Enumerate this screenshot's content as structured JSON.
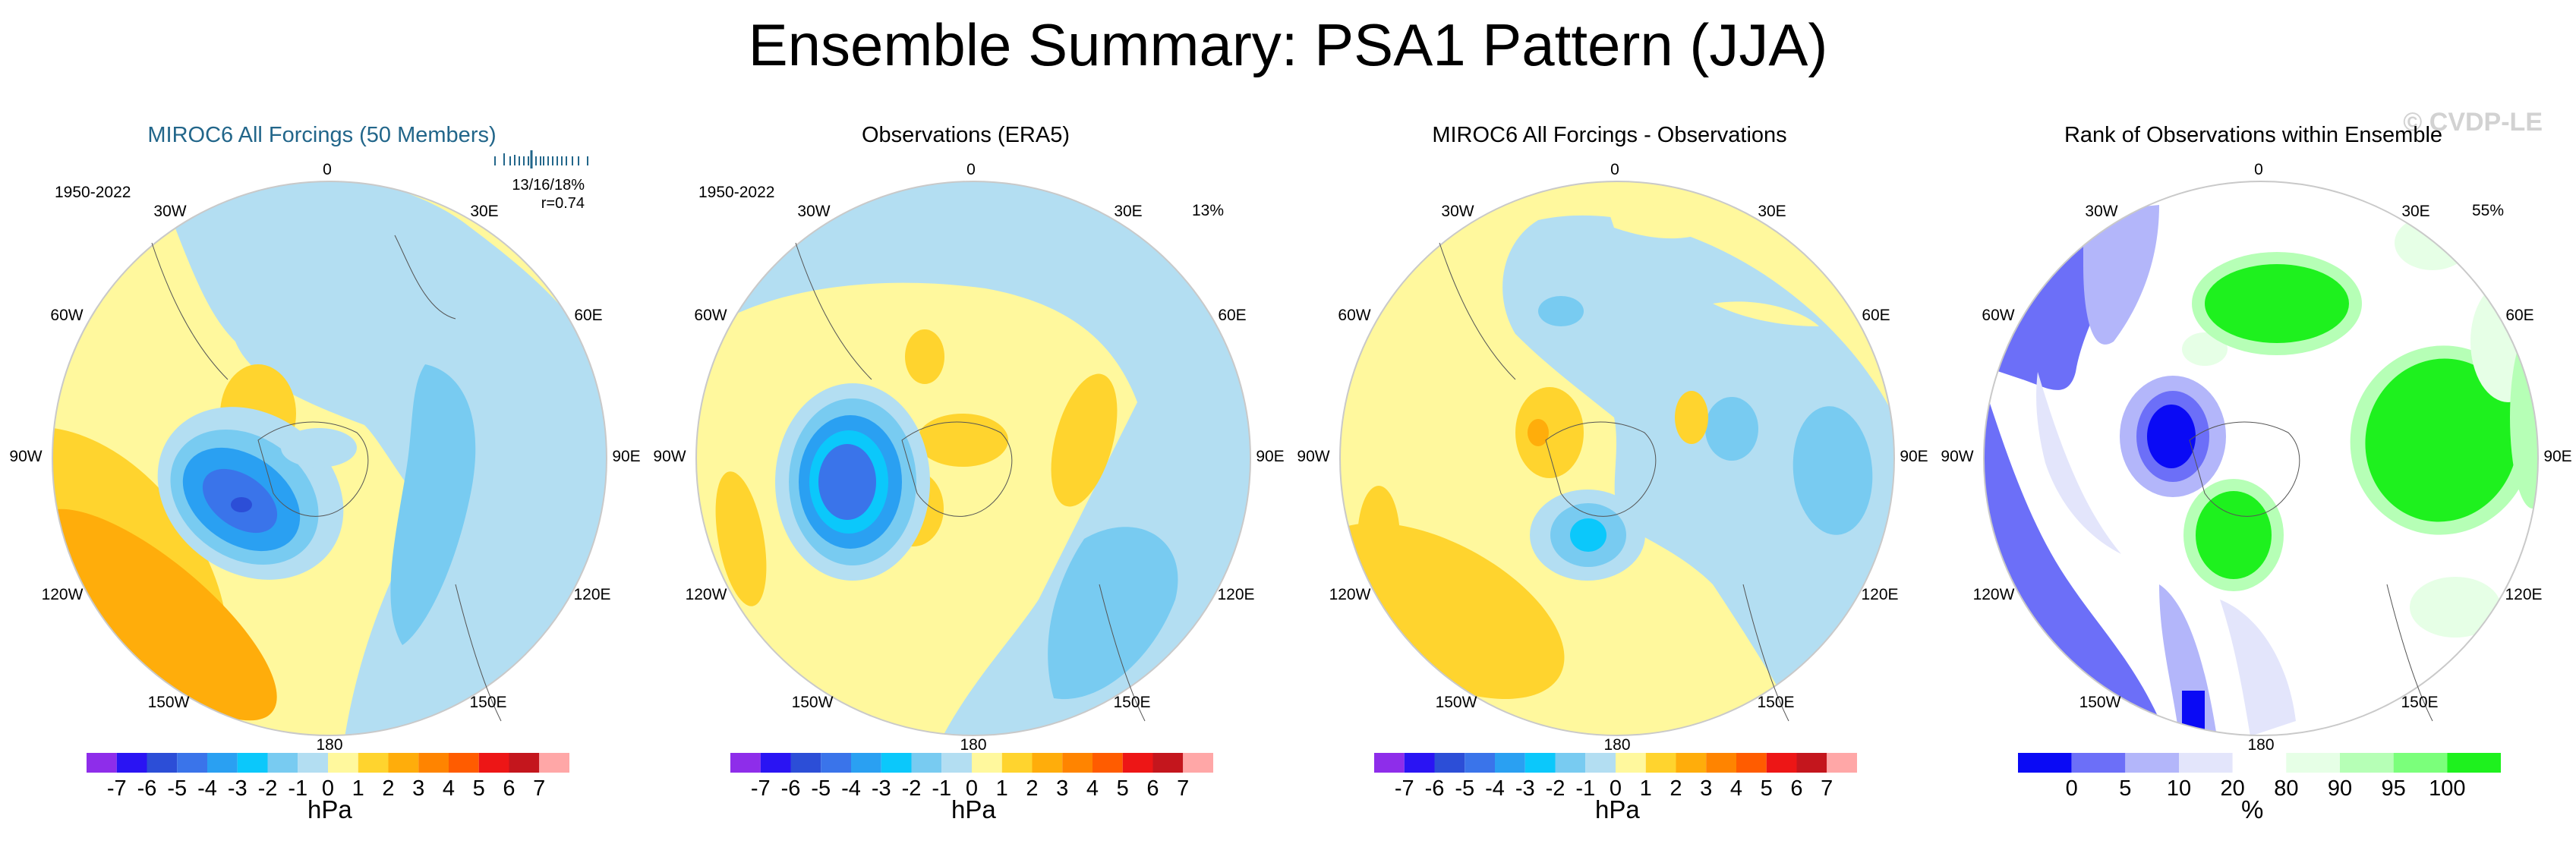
{
  "title": "Ensemble Summary: PSA1 Pattern (JJA)",
  "watermark": "© CVDP-LE",
  "longitude_labels": [
    "0",
    "30E",
    "60E",
    "90E",
    "120E",
    "150E",
    "180",
    "150W",
    "120W",
    "90W",
    "60W",
    "30W"
  ],
  "panels": [
    {
      "title": "MIROC6 All Forcings (50 Members)",
      "period": "1950-2022",
      "stats_line1": "13/16/18%",
      "stats_line2": "r=0.74",
      "unit": "hPa",
      "colorbar_type": "slp",
      "map_name": "miroc-map"
    },
    {
      "title": "Observations (ERA5)",
      "period": "1950-2022",
      "percent": "13%",
      "unit": "hPa",
      "colorbar_type": "slp",
      "map_name": "era5-map"
    },
    {
      "title": "MIROC6 All Forcings - Observations",
      "unit": "hPa",
      "colorbar_type": "slp",
      "map_name": "difference-map"
    },
    {
      "title": "Rank of Observations within Ensemble",
      "percent": "55%",
      "unit": "%",
      "colorbar_type": "rank",
      "map_name": "rank-map"
    }
  ],
  "colorbars": {
    "slp": {
      "colors": [
        "#8e2dea",
        "#2a14f3",
        "#2c4ed7",
        "#3a74ea",
        "#2aa0f2",
        "#0bc8fb",
        "#78cbf1",
        "#b3def2",
        "#fff89d",
        "#ffd42e",
        "#ffad0b",
        "#ff8400",
        "#ff5c00",
        "#ed1616",
        "#c4161d",
        "#ffa7a7"
      ],
      "labels": [
        "-7",
        "-6",
        "-5",
        "-4",
        "-3",
        "-2",
        "-1",
        "0",
        "1",
        "2",
        "3",
        "4",
        "5",
        "6",
        "7"
      ]
    },
    "rank": {
      "colors": [
        "#0a0af5",
        "#6c6ff8",
        "#b3b6fa",
        "#e3e5fb",
        "#ffffff",
        "#e6ffe6",
        "#b6ffb6",
        "#7bff7b",
        "#1ef11e"
      ],
      "labels": [
        "0",
        "5",
        "10",
        "20",
        "80",
        "90",
        "95",
        "100"
      ]
    }
  }
}
